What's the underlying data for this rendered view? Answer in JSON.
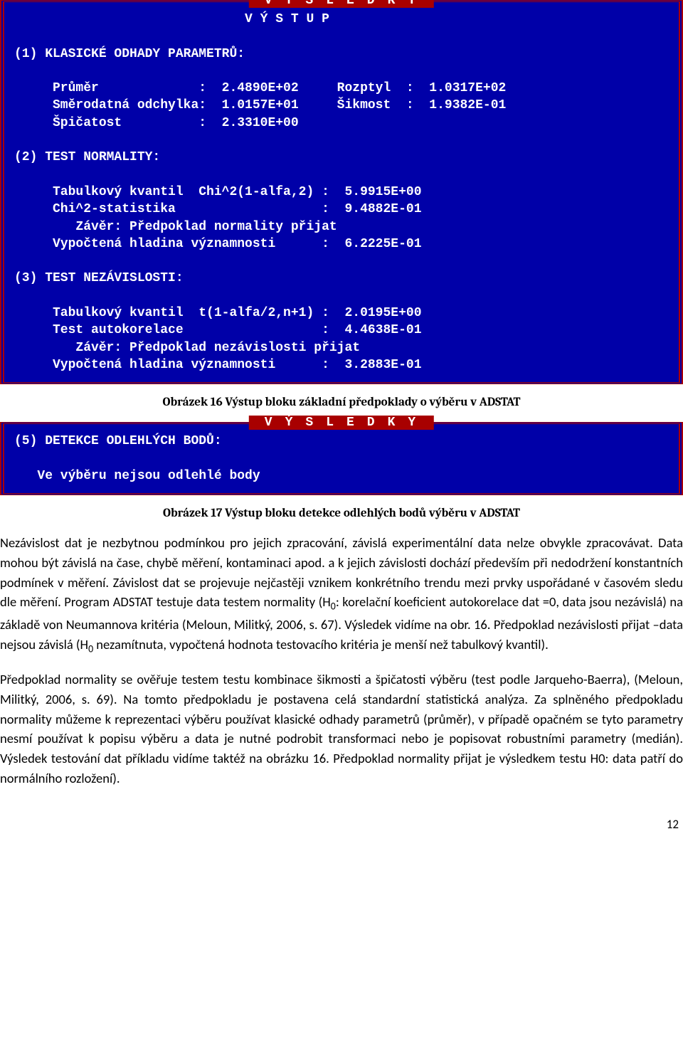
{
  "terminal1": {
    "banner": "VÝSLEDKY",
    "output_title": "                              V Ý S T U P",
    "s1_header": "(1) KLASICKÉ ODHADY PARAMETRŮ:",
    "s1_l1": "     Průměr             :  2.4890E+02     Rozptyl  :  1.0317E+02",
    "s1_l2": "     Směrodatná odchylka:  1.0157E+01     Šikmost  :  1.9382E-01",
    "s1_l3": "     Špičatost          :  2.3310E+00",
    "s2_header": "(2) TEST NORMALITY:",
    "s2_l1": "     Tabulkový kvantil  Chi^2(1-alfa,2) :  5.9915E+00",
    "s2_l2": "     Chi^2-statistika                   :  9.4882E-01",
    "s2_l3": "        Závěr: Předpoklad normality přijat",
    "s2_l4": "     Vypočtená hladina významnosti      :  6.2225E-01",
    "s3_header": "(3) TEST NEZÁVISLOSTI:",
    "s3_l1": "     Tabulkový kvantil  t(1-alfa/2,n+1) :  2.0195E+00",
    "s3_l2": "     Test autokorelace                  :  4.4638E-01",
    "s3_l3": "        Závěr: Předpoklad nezávislosti přijat",
    "s3_l4": "     Vypočtená hladina významnosti      :  3.2883E-01"
  },
  "caption1": "Obrázek 16 Výstup bloku základní předpoklady o výběru v ADSTAT",
  "terminal2": {
    "banner": "VÝSLEDKY",
    "l1": "(5) DETEKCE ODLEHLÝCH BODŮ:",
    "l2": "   Ve výběru nejsou odlehlé body"
  },
  "caption2": "Obrázek 17 Výstup bloku detekce odlehlých bodů výběru v ADSTAT",
  "para1_a": "Nezávislost dat je nezbytnou podmínkou pro jejich zpracování, závislá experimentální data nelze obvykle zpracovávat. Data mohou být závislá na čase, chybě měření, kontaminaci apod. a k jejich závislosti dochází především při nedodržení konstantních podmínek v měření. Závislost dat se projevuje nejčastěji vznikem konkrétního trendu mezi prvky uspořádané v časovém sledu dle měření. Program ADSTAT testuje data testem normality (H",
  "para1_b": ": korelační koeficient autokorelace dat =0, data jsou nezávislá) na základě von Neumannova kritéria (Meloun, Militký, 2006, s. 67). Výsledek vidíme na obr. 16. Předpoklad nezávislosti přijat –data nejsou závislá (H",
  "para1_c": " nezamítnuta, vypočtená hodnota testovacího kritéria je menší než tabulkový kvantil).",
  "para2": "Předpoklad normality se ověřuje testem testu kombinace šikmosti a špičatosti výběru (test podle Jarqueho-Baerra), (Meloun, Militký, 2006, s. 69). Na tomto předpokladu je postavena celá standardní statistická analýza.  Za splněného předpokladu normality můžeme k reprezentaci výběru používat klasické odhady parametrů (průměr), v případě opačném se tyto parametry nesmí používat k popisu výběru a data je nutné podrobit transformaci nebo je popisovat robustními parametry (medián). Výsledek testování dat příkladu vidíme taktéž na obrázku 16. Předpoklad normality přijat je výsledkem testu H0: data patří do normálního rozložení).",
  "page_number": "12",
  "sub_zero": "0"
}
